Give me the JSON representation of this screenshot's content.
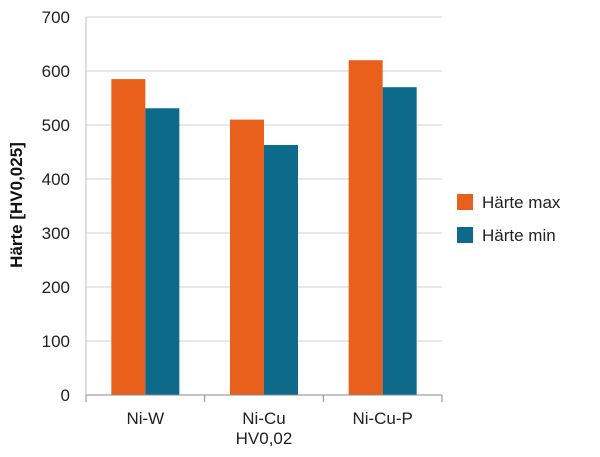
{
  "chart_data": {
    "type": "bar",
    "categories": [
      [
        "Ni-W"
      ],
      [
        "Ni-Cu",
        "HV0,02"
      ],
      [
        "Ni-Cu-P"
      ]
    ],
    "series": [
      {
        "name": "Härte max",
        "values": [
          585,
          510,
          620
        ],
        "color": "#E8601C"
      },
      {
        "name": "Härte min",
        "values": [
          531,
          463,
          570
        ],
        "color": "#0E6A8A"
      }
    ],
    "ylabel": "Härte [HV0,025]",
    "xlabel": "",
    "ylim": [
      0,
      700
    ],
    "yticks": [
      0,
      100,
      200,
      300,
      400,
      500,
      600,
      700
    ],
    "grid": true,
    "legend_position": "right"
  }
}
